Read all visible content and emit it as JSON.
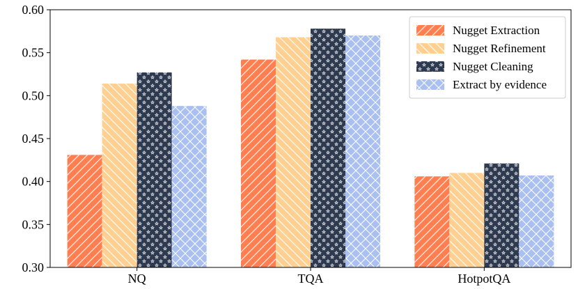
{
  "chart_data": {
    "type": "bar",
    "title": "",
    "xlabel": "",
    "ylabel": "",
    "categories": [
      "NQ",
      "TQA",
      "HotpotQA"
    ],
    "ylim": [
      0.3,
      0.6
    ],
    "yticks": [
      "0.30",
      "0.35",
      "0.40",
      "0.45",
      "0.50",
      "0.55",
      "0.60"
    ],
    "grid": false,
    "legend_position": "top-right",
    "series": [
      {
        "name": "Nugget Extraction",
        "values": [
          0.431,
          0.542,
          0.406
        ],
        "color": "#ff7f50",
        "hatch": "diagonal"
      },
      {
        "name": "Nugget Refinement",
        "values": [
          0.514,
          0.568,
          0.41
        ],
        "color": "#ffd092",
        "hatch": "back-diagonal"
      },
      {
        "name": "Nugget Cleaning",
        "values": [
          0.527,
          0.578,
          0.421
        ],
        "color": "#2e3a50",
        "hatch": "stars"
      },
      {
        "name": "Extract by evidence",
        "values": [
          0.488,
          0.57,
          0.407
        ],
        "color": "#a9c0f0",
        "hatch": "cross"
      }
    ]
  }
}
